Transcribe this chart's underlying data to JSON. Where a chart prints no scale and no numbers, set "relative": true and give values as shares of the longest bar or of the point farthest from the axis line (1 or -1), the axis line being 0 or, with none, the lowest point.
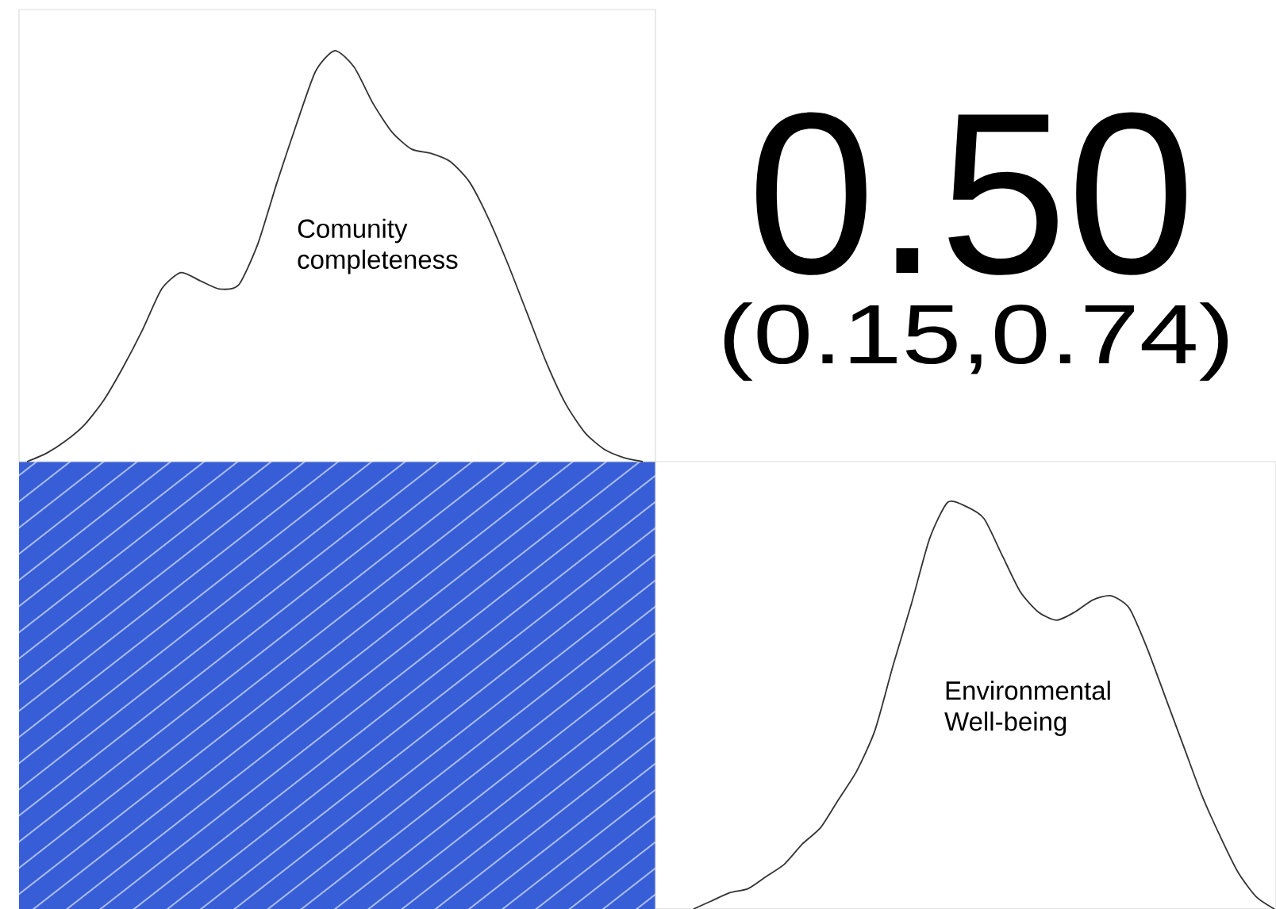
{
  "chart_data": [
    {
      "type": "line",
      "relative": true,
      "categories": [
        null,
        null,
        null,
        null,
        null,
        null,
        null,
        null,
        null,
        null,
        null,
        null,
        null,
        null,
        null,
        null,
        null,
        null,
        null,
        null,
        null,
        null,
        null,
        null,
        null,
        null,
        null,
        null,
        null,
        null,
        null,
        null,
        null
      ],
      "series": [
        {
          "color": "#333333",
          "values": [
            0.0,
            0.02,
            0.05,
            0.09,
            0.15,
            0.23,
            0.32,
            0.42,
            0.46,
            0.44,
            0.42,
            0.43,
            0.53,
            0.68,
            0.82,
            0.95,
            1.0,
            0.96,
            0.87,
            0.8,
            0.76,
            0.75,
            0.73,
            0.68,
            0.59,
            0.48,
            0.36,
            0.24,
            0.14,
            0.07,
            0.03,
            0.01,
            0.0
          ]
        }
      ],
      "annotations": [
        "Comunity completeness"
      ]
    },
    {
      "type": "other",
      "annotations": [
        "0.50",
        "(0.15,0.74)"
      ]
    },
    {
      "type": "line",
      "relative": true,
      "categories": [
        null,
        null,
        null,
        null,
        null,
        null,
        null,
        null,
        null,
        null,
        null,
        null,
        null,
        null,
        null,
        null,
        null,
        null,
        null,
        null,
        null,
        null,
        null,
        null,
        null,
        null,
        null,
        null,
        null,
        null,
        null,
        null,
        null
      ],
      "series": [
        {
          "color": "#333333",
          "values": [
            0.0,
            0.02,
            0.04,
            0.05,
            0.08,
            0.11,
            0.16,
            0.2,
            0.27,
            0.34,
            0.44,
            0.6,
            0.75,
            0.91,
            1.0,
            0.99,
            0.96,
            0.87,
            0.78,
            0.73,
            0.71,
            0.73,
            0.76,
            0.77,
            0.74,
            0.64,
            0.52,
            0.4,
            0.28,
            0.18,
            0.09,
            0.03,
            0.0
          ]
        }
      ],
      "annotations": [
        "Environmental Well-being"
      ]
    }
  ]
}
